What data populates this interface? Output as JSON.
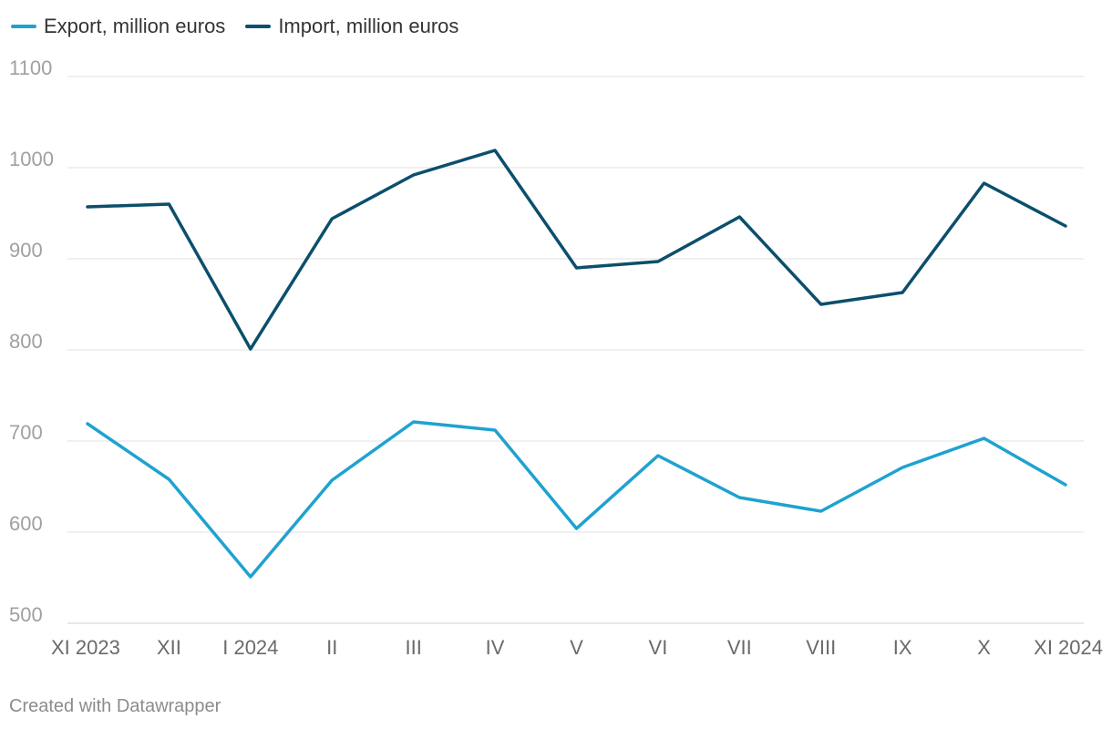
{
  "colors": {
    "export": "#1fa2d0",
    "import": "#0b4f6c",
    "grid": "#e2e2e2",
    "tick": "#a0a0a0",
    "xtick": "#6a6a6a"
  },
  "legend": {
    "export": "Export, million euros",
    "import": "Import, million euros"
  },
  "footer": "Created with Datawrapper",
  "chart_data": {
    "type": "line",
    "categories": [
      "XI 2023",
      "XII",
      "I 2024",
      "II",
      "III",
      "IV",
      "V",
      "VI",
      "VII",
      "VIII",
      "IX",
      "X",
      "XI 2024"
    ],
    "series": [
      {
        "name": "Export, million euros",
        "values": [
          719,
          658,
          551,
          657,
          721,
          712,
          604,
          684,
          638,
          623,
          671,
          703,
          652
        ]
      },
      {
        "name": "Import, million euros",
        "values": [
          957,
          960,
          801,
          944,
          992,
          1019,
          890,
          897,
          946,
          850,
          863,
          983,
          936
        ]
      }
    ],
    "yticks": [
      500,
      600,
      700,
      800,
      900,
      1000,
      1100
    ],
    "ylim": [
      500,
      1100
    ],
    "grid": true,
    "legend_position": "top-left"
  }
}
